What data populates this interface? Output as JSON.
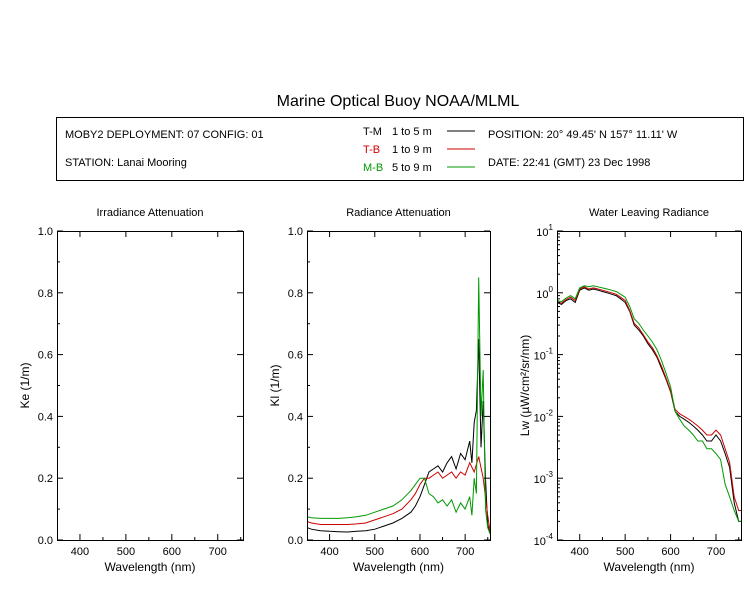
{
  "title": "Marine Optical Buoy NOAA/MLML",
  "info": {
    "deployment": "MOBY2 DEPLOYMENT: 07 CONFIG: 01",
    "station": "STATION: Lanai Mooring",
    "position": "POSITION: 20° 49.45' N   157° 11.11' W",
    "date": "DATE: 22:41 (GMT) 23 Dec 1998"
  },
  "legend": [
    {
      "code": "T-M",
      "depth": "1 to 5  m",
      "color": "#000000",
      "code_color": "#000000"
    },
    {
      "code": "T-B",
      "depth": "1 to 9  m",
      "color": "#cc0000",
      "code_color": "#cc0000"
    },
    {
      "code": "M-B",
      "depth": "5 to 9  m",
      "color": "#009900",
      "code_color": "#009900"
    }
  ],
  "chart_data": [
    {
      "type": "line",
      "title": "Irradiance Attenuation",
      "xlabel": "Wavelength (nm)",
      "ylabel": "Ke  (1/m)",
      "xlim": [
        350,
        755
      ],
      "ylim": [
        0,
        1
      ],
      "xticks": [
        "400",
        "500",
        "600",
        "700"
      ],
      "yticks": [
        "0.0",
        "0.2",
        "0.4",
        "0.6",
        "0.8",
        "1.0"
      ],
      "series": []
    },
    {
      "type": "line",
      "title": "Radiance Attenuation",
      "xlabel": "Wavelength (nm)",
      "ylabel": "Kl  (1/m)",
      "xlim": [
        350,
        755
      ],
      "ylim": [
        0,
        1
      ],
      "xticks": [
        "400",
        "500",
        "600",
        "700"
      ],
      "yticks": [
        "0.0",
        "0.2",
        "0.4",
        "0.6",
        "0.8",
        "1.0"
      ],
      "series": [
        {
          "name": "T-M",
          "color": "#000000",
          "x": [
            350,
            360,
            380,
            400,
            420,
            440,
            460,
            480,
            500,
            520,
            540,
            560,
            580,
            590,
            600,
            610,
            620,
            630,
            640,
            650,
            660,
            670,
            680,
            690,
            700,
            710,
            715,
            720,
            725,
            730,
            735,
            740,
            745,
            750,
            755
          ],
          "y": [
            0.04,
            0.035,
            0.03,
            0.028,
            0.027,
            0.026,
            0.028,
            0.03,
            0.035,
            0.045,
            0.055,
            0.07,
            0.09,
            0.11,
            0.14,
            0.18,
            0.22,
            0.23,
            0.24,
            0.22,
            0.25,
            0.27,
            0.23,
            0.28,
            0.26,
            0.32,
            0.25,
            0.38,
            0.42,
            0.65,
            0.3,
            0.45,
            0.2,
            0.05,
            0.02
          ]
        },
        {
          "name": "T-B",
          "color": "#cc0000",
          "x": [
            350,
            360,
            380,
            400,
            420,
            440,
            460,
            480,
            500,
            520,
            540,
            560,
            580,
            590,
            600,
            610,
            620,
            630,
            640,
            650,
            660,
            670,
            680,
            690,
            700,
            710,
            720,
            730,
            740,
            750,
            755
          ],
          "y": [
            0.06,
            0.055,
            0.05,
            0.05,
            0.05,
            0.05,
            0.052,
            0.055,
            0.065,
            0.075,
            0.085,
            0.1,
            0.13,
            0.15,
            0.18,
            0.2,
            0.2,
            0.21,
            0.22,
            0.2,
            0.21,
            0.22,
            0.2,
            0.22,
            0.21,
            0.25,
            0.22,
            0.27,
            0.2,
            0.08,
            0.03
          ]
        },
        {
          "name": "M-B",
          "color": "#009900",
          "x": [
            350,
            360,
            380,
            400,
            420,
            440,
            460,
            480,
            500,
            520,
            540,
            560,
            580,
            590,
            600,
            610,
            620,
            630,
            640,
            650,
            660,
            670,
            680,
            690,
            700,
            710,
            715,
            720,
            725,
            730,
            735,
            740,
            745,
            750,
            755
          ],
          "y": [
            0.075,
            0.072,
            0.07,
            0.07,
            0.07,
            0.072,
            0.075,
            0.08,
            0.09,
            0.1,
            0.11,
            0.13,
            0.16,
            0.18,
            0.2,
            0.2,
            0.15,
            0.14,
            0.12,
            0.13,
            0.11,
            0.13,
            0.09,
            0.12,
            0.1,
            0.14,
            0.08,
            0.2,
            0.15,
            0.85,
            0.4,
            0.55,
            0.1,
            0.04,
            0.02
          ]
        }
      ]
    },
    {
      "type": "line",
      "title": "Water Leaving Radiance",
      "xlabel": "Wavelength (nm)",
      "ylabel": "Lw  (µW/cm²/sr/nm)",
      "xlim": [
        350,
        755
      ],
      "ylim": [
        0.0001,
        10
      ],
      "yscale": "log",
      "xticks": [
        "400",
        "500",
        "600",
        "700"
      ],
      "yticks": [
        {
          "base": "10",
          "exp": "1"
        },
        {
          "base": "10",
          "exp": "0"
        },
        {
          "base": "10",
          "exp": "-1"
        },
        {
          "base": "10",
          "exp": "-2"
        },
        {
          "base": "10",
          "exp": "-3"
        },
        {
          "base": "10",
          "exp": "-4"
        }
      ],
      "series": [
        {
          "name": "T-M",
          "color": "#000000",
          "x": [
            350,
            360,
            370,
            380,
            390,
            400,
            410,
            420,
            430,
            440,
            450,
            460,
            470,
            480,
            490,
            500,
            510,
            520,
            530,
            540,
            550,
            560,
            570,
            580,
            590,
            600,
            610,
            620,
            630,
            640,
            650,
            660,
            670,
            680,
            690,
            700,
            710,
            720,
            730,
            740,
            750,
            755
          ],
          "y": [
            0.7,
            0.65,
            0.75,
            0.8,
            0.7,
            1.1,
            1.2,
            1.1,
            1.15,
            1.1,
            1.05,
            1.0,
            0.95,
            0.9,
            0.8,
            0.7,
            0.5,
            0.3,
            0.25,
            0.2,
            0.15,
            0.12,
            0.09,
            0.06,
            0.04,
            0.025,
            0.012,
            0.01,
            0.009,
            0.008,
            0.007,
            0.006,
            0.005,
            0.004,
            0.004,
            0.005,
            0.004,
            0.0025,
            0.0015,
            0.0004,
            0.0002,
            0.0002
          ]
        },
        {
          "name": "T-B",
          "color": "#cc0000",
          "x": [
            350,
            360,
            370,
            380,
            390,
            400,
            410,
            420,
            430,
            440,
            450,
            460,
            470,
            480,
            490,
            500,
            510,
            520,
            530,
            540,
            550,
            560,
            570,
            580,
            590,
            600,
            610,
            620,
            630,
            640,
            650,
            660,
            670,
            680,
            690,
            700,
            710,
            720,
            730,
            740,
            750,
            755
          ],
          "y": [
            0.72,
            0.68,
            0.78,
            0.85,
            0.75,
            1.15,
            1.25,
            1.15,
            1.2,
            1.15,
            1.1,
            1.05,
            1.0,
            0.95,
            0.85,
            0.75,
            0.52,
            0.32,
            0.27,
            0.21,
            0.16,
            0.13,
            0.095,
            0.065,
            0.042,
            0.026,
            0.013,
            0.011,
            0.01,
            0.009,
            0.008,
            0.007,
            0.006,
            0.005,
            0.005,
            0.006,
            0.005,
            0.003,
            0.0018,
            0.0005,
            0.0003,
            0.0003
          ]
        },
        {
          "name": "M-B",
          "color": "#009900",
          "x": [
            350,
            360,
            370,
            380,
            390,
            400,
            410,
            420,
            430,
            440,
            450,
            460,
            470,
            480,
            490,
            500,
            510,
            520,
            530,
            540,
            550,
            560,
            570,
            580,
            590,
            600,
            610,
            620,
            630,
            640,
            650,
            660,
            670,
            680,
            690,
            700,
            710,
            720,
            730,
            740,
            750,
            755
          ],
          "y": [
            0.75,
            0.72,
            0.82,
            0.9,
            0.8,
            1.2,
            1.3,
            1.25,
            1.3,
            1.25,
            1.2,
            1.15,
            1.1,
            1.05,
            0.95,
            0.85,
            0.6,
            0.38,
            0.32,
            0.25,
            0.2,
            0.16,
            0.12,
            0.08,
            0.05,
            0.03,
            0.012,
            0.009,
            0.007,
            0.006,
            0.005,
            0.004,
            0.004,
            0.003,
            0.003,
            0.0025,
            0.002,
            0.0008,
            0.0005,
            0.0003,
            0.0002,
            0.0002
          ]
        }
      ]
    }
  ]
}
